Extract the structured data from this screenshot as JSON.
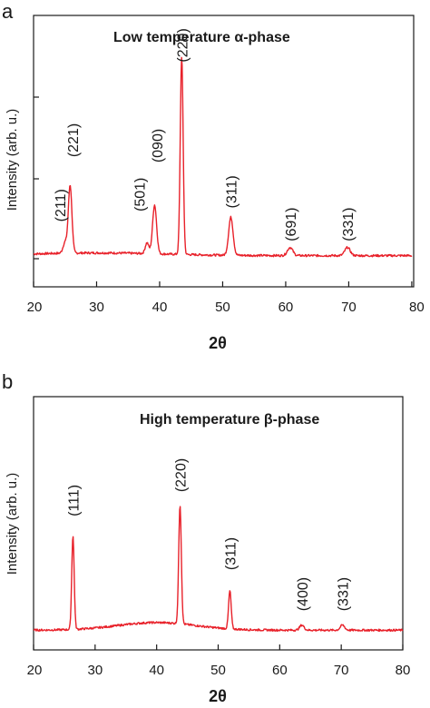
{
  "chart_data": [
    {
      "type": "line",
      "panel": "a",
      "title": "Low temperature α-phase",
      "xlabel": "2θ",
      "ylabel": "Intensity (arb. u.)",
      "xlim": [
        20,
        80
      ],
      "x_ticks": [
        "20",
        "30",
        "40",
        "50",
        "60",
        "70",
        "80"
      ],
      "line_color": "#e8212a",
      "baseline": 0.115,
      "peaks": [
        {
          "x": 25.0,
          "height": 0.04,
          "width": 0.45
        },
        {
          "x": 25.8,
          "height": 0.25,
          "width": 0.4
        },
        {
          "x": 38.0,
          "height": 0.04,
          "width": 0.4
        },
        {
          "x": 39.2,
          "height": 0.18,
          "width": 0.45
        },
        {
          "x": 43.5,
          "height": 0.73,
          "width": 0.32
        },
        {
          "x": 51.3,
          "height": 0.14,
          "width": 0.5
        },
        {
          "x": 60.7,
          "height": 0.03,
          "width": 0.6
        },
        {
          "x": 69.8,
          "height": 0.03,
          "width": 0.6
        }
      ],
      "annotations": [
        {
          "text": "(211)",
          "x": 24.2,
          "y": 0.3
        },
        {
          "text": "(221)",
          "x": 26.2,
          "y": 0.54
        },
        {
          "text": "(501)",
          "x": 36.8,
          "y": 0.34
        },
        {
          "text": "(090)",
          "x": 39.6,
          "y": 0.52
        },
        {
          "text": "(220)",
          "x": 43.5,
          "y": 0.89
        },
        {
          "text": "(311)",
          "x": 51.3,
          "y": 0.35
        },
        {
          "text": "(691)",
          "x": 60.7,
          "y": 0.23
        },
        {
          "text": "(331)",
          "x": 69.8,
          "y": 0.23
        }
      ]
    },
    {
      "type": "line",
      "panel": "b",
      "title": "High temperature β-phase",
      "xlabel": "2θ",
      "ylabel": "Intensity (arb. u.)",
      "xlim": [
        20,
        80
      ],
      "x_ticks": [
        "20",
        "30",
        "40",
        "50",
        "60",
        "70",
        "80"
      ],
      "line_color": "#e8212a",
      "baseline": 0.078,
      "peaks": [
        {
          "x": 26.4,
          "height": 0.37,
          "width": 0.28
        },
        {
          "x": 43.8,
          "height": 0.47,
          "width": 0.3
        },
        {
          "x": 51.9,
          "height": 0.15,
          "width": 0.3
        },
        {
          "x": 63.6,
          "height": 0.02,
          "width": 0.5
        },
        {
          "x": 70.2,
          "height": 0.02,
          "width": 0.5
        }
      ],
      "annotations": [
        {
          "text": "(111)",
          "x": 26.4,
          "y": 0.59
        },
        {
          "text": "(220)",
          "x": 43.8,
          "y": 0.69
        },
        {
          "text": "(311)",
          "x": 51.9,
          "y": 0.38
        },
        {
          "text": "(400)",
          "x": 63.6,
          "y": 0.22
        },
        {
          "text": "(331)",
          "x": 70.2,
          "y": 0.22
        }
      ]
    }
  ],
  "panels": {
    "a": {
      "letter": "a"
    },
    "b": {
      "letter": "b"
    }
  }
}
